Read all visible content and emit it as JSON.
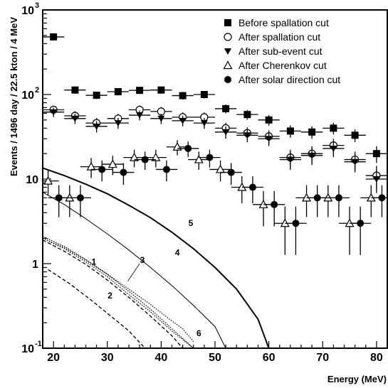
{
  "chart_data": {
    "type": "scatter",
    "xlabel": "Energy (MeV)",
    "ylabel": "Events / 1496 day / 22.5 kton / 4 MeV",
    "xlim": [
      18,
      82
    ],
    "ylim": [
      0.1,
      1000
    ],
    "yscale": "log",
    "x_ticks": [
      20,
      30,
      40,
      50,
      60,
      70,
      80
    ],
    "y_ticks": [
      {
        "value": 0.1,
        "base": "10",
        "exp": "-1"
      },
      {
        "value": 1,
        "base": "1",
        "exp": ""
      },
      {
        "value": 10,
        "base": "10",
        "exp": ""
      },
      {
        "value": 100,
        "base": "10",
        "exp": "2"
      },
      {
        "value": 1000,
        "base": "10",
        "exp": "3"
      }
    ],
    "legend_placement": "top-right",
    "series": [
      {
        "name": "Before spallation cut",
        "marker": "filled-square",
        "points": [
          {
            "x": 20,
            "y": 480
          },
          {
            "x": 24,
            "y": 113
          },
          {
            "x": 28,
            "y": 98
          },
          {
            "x": 32,
            "y": 108
          },
          {
            "x": 36,
            "y": 112
          },
          {
            "x": 40,
            "y": 113
          },
          {
            "x": 44,
            "y": 97
          },
          {
            "x": 48,
            "y": 100
          },
          {
            "x": 52,
            "y": 68
          },
          {
            "x": 56,
            "y": 58
          },
          {
            "x": 60,
            "y": 50
          },
          {
            "x": 64,
            "y": 37
          },
          {
            "x": 68,
            "y": 36
          },
          {
            "x": 72,
            "y": 40
          },
          {
            "x": 76,
            "y": 33
          },
          {
            "x": 80,
            "y": 20
          }
        ]
      },
      {
        "name": "After spallation cut",
        "marker": "open-circle",
        "points": [
          {
            "x": 20,
            "y": 66
          },
          {
            "x": 24,
            "y": 56
          },
          {
            "x": 28,
            "y": 46
          },
          {
            "x": 32,
            "y": 52
          },
          {
            "x": 36,
            "y": 66
          },
          {
            "x": 40,
            "y": 63
          },
          {
            "x": 44,
            "y": 54
          },
          {
            "x": 48,
            "y": 54
          },
          {
            "x": 52,
            "y": 40
          },
          {
            "x": 56,
            "y": 35
          },
          {
            "x": 60,
            "y": 32
          },
          {
            "x": 64,
            "y": 18
          },
          {
            "x": 68,
            "y": 20
          },
          {
            "x": 72,
            "y": 25
          },
          {
            "x": 76,
            "y": 17
          },
          {
            "x": 80,
            "y": 11
          }
        ]
      },
      {
        "name": "After sub-event cut",
        "marker": "filled-triangle-down",
        "points": [
          {
            "x": 20,
            "y": 62
          },
          {
            "x": 24,
            "y": 52
          },
          {
            "x": 28,
            "y": 42
          },
          {
            "x": 32,
            "y": 46
          },
          {
            "x": 36,
            "y": 57
          },
          {
            "x": 40,
            "y": 52
          },
          {
            "x": 44,
            "y": 49
          },
          {
            "x": 48,
            "y": 46
          },
          {
            "x": 52,
            "y": 36
          },
          {
            "x": 56,
            "y": 33
          },
          {
            "x": 60,
            "y": 30
          },
          {
            "x": 64,
            "y": 17
          },
          {
            "x": 68,
            "y": 19
          },
          {
            "x": 72,
            "y": 23
          },
          {
            "x": 76,
            "y": 16
          },
          {
            "x": 80,
            "y": 10
          }
        ]
      },
      {
        "name": "After Cherenkov cut",
        "marker": "open-triangle-up",
        "points": [
          {
            "x": 19,
            "y": 9.5
          },
          {
            "x": 23,
            "y": 6
          },
          {
            "x": 27,
            "y": 14
          },
          {
            "x": 31,
            "y": 15
          },
          {
            "x": 35,
            "y": 18
          },
          {
            "x": 39,
            "y": 18
          },
          {
            "x": 43,
            "y": 24
          },
          {
            "x": 47,
            "y": 17
          },
          {
            "x": 51,
            "y": 13
          },
          {
            "x": 55,
            "y": 8
          },
          {
            "x": 59,
            "y": 5
          },
          {
            "x": 63,
            "y": 3
          },
          {
            "x": 67,
            "y": 6
          },
          {
            "x": 71,
            "y": 6
          },
          {
            "x": 75,
            "y": 3
          },
          {
            "x": 79,
            "y": 6
          }
        ]
      },
      {
        "name": "After solar direction cut",
        "marker": "filled-circle",
        "points": [
          {
            "x": 21,
            "y": 6
          },
          {
            "x": 25,
            "y": 6
          },
          {
            "x": 29,
            "y": 13
          },
          {
            "x": 33,
            "y": 12
          },
          {
            "x": 37,
            "y": 17
          },
          {
            "x": 41,
            "y": 13
          },
          {
            "x": 45,
            "y": 23
          },
          {
            "x": 49,
            "y": 18
          },
          {
            "x": 53,
            "y": 12
          },
          {
            "x": 57,
            "y": 8
          },
          {
            "x": 61,
            "y": 5
          },
          {
            "x": 65,
            "y": 3
          },
          {
            "x": 69,
            "y": 6
          },
          {
            "x": 73,
            "y": 6
          },
          {
            "x": 77,
            "y": 3
          },
          {
            "x": 81,
            "y": 6
          }
        ]
      }
    ],
    "curves": [
      {
        "label": "1",
        "style": "dotted",
        "points": [
          [
            18,
            2.0
          ],
          [
            22,
            1.5
          ],
          [
            26,
            1.05
          ],
          [
            30,
            0.7
          ],
          [
            34,
            0.43
          ],
          [
            38,
            0.27
          ],
          [
            42,
            0.16
          ],
          [
            46,
            0.1
          ]
        ]
      },
      {
        "label": "2",
        "style": "dashed",
        "points": [
          [
            19,
            0.85
          ],
          [
            23,
            0.58
          ],
          [
            27,
            0.37
          ],
          [
            31,
            0.23
          ],
          [
            34,
            0.16
          ],
          [
            37,
            0.1
          ]
        ]
      },
      {
        "label": "3",
        "style": "dotted",
        "points": [
          [
            18,
            2.1
          ],
          [
            22,
            1.6
          ],
          [
            26,
            1.12
          ],
          [
            30,
            0.75
          ],
          [
            34,
            0.47
          ],
          [
            38,
            0.29
          ],
          [
            42,
            0.17
          ],
          [
            46,
            0.1
          ]
        ]
      },
      {
        "label": "4",
        "style": "solid-thin",
        "points": [
          [
            18,
            7.0
          ],
          [
            22,
            5.0
          ],
          [
            26,
            3.4
          ],
          [
            30,
            2.25
          ],
          [
            34,
            1.45
          ],
          [
            38,
            0.9
          ],
          [
            42,
            0.55
          ],
          [
            46,
            0.32
          ],
          [
            50,
            0.18
          ],
          [
            52,
            0.1
          ]
        ]
      },
      {
        "label": "5",
        "style": "solid-thick",
        "points": [
          [
            18,
            13.5
          ],
          [
            22,
            11.0
          ],
          [
            26,
            8.7
          ],
          [
            30,
            6.7
          ],
          [
            34,
            4.9
          ],
          [
            38,
            3.5
          ],
          [
            42,
            2.35
          ],
          [
            46,
            1.5
          ],
          [
            50,
            0.9
          ],
          [
            54,
            0.5
          ],
          [
            58,
            0.22
          ],
          [
            60,
            0.1
          ]
        ]
      },
      {
        "label": "6",
        "style": "dotted",
        "points": [
          [
            18,
            2.0
          ],
          [
            22,
            1.55
          ],
          [
            26,
            1.1
          ],
          [
            30,
            0.75
          ],
          [
            34,
            0.5
          ],
          [
            38,
            0.33
          ],
          [
            42,
            0.21
          ],
          [
            44,
            0.17
          ],
          [
            46,
            0.12
          ]
        ]
      },
      {
        "label": "",
        "style": "dashed",
        "points": [
          [
            18,
            1.9
          ],
          [
            22,
            1.4
          ],
          [
            26,
            0.98
          ],
          [
            30,
            0.64
          ],
          [
            34,
            0.4
          ],
          [
            38,
            0.24
          ],
          [
            42,
            0.14
          ],
          [
            44,
            0.1
          ]
        ]
      }
    ],
    "curve_label_positions": [
      {
        "label": "1",
        "x": 27.5,
        "y": 1.05
      },
      {
        "label": "2",
        "x": 30.5,
        "y": 0.42
      },
      {
        "label": "3",
        "x": 36.5,
        "y": 1.1
      },
      {
        "label": "4",
        "x": 43,
        "y": 1.35
      },
      {
        "label": "5",
        "x": 45.5,
        "y": 3.0
      },
      {
        "label": "6",
        "x": 47,
        "y": 0.15
      }
    ]
  }
}
